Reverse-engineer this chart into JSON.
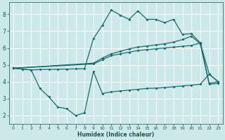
{
  "bg_color": "#cde8e8",
  "grid_color": "#b0d8d8",
  "line_color": "#1a6b6b",
  "xlabel": "Humidex (Indice chaleur)",
  "ylim": [
    1.5,
    8.7
  ],
  "xlim": [
    -0.5,
    23.5
  ],
  "yticks": [
    2,
    3,
    4,
    5,
    6,
    7,
    8
  ],
  "xticks": [
    0,
    1,
    2,
    3,
    4,
    5,
    6,
    7,
    8,
    9,
    10,
    11,
    12,
    13,
    14,
    15,
    16,
    17,
    18,
    19,
    20,
    21,
    22,
    23
  ],
  "series1_x": [
    0,
    1,
    2,
    3,
    4,
    5,
    6,
    7,
    8,
    9,
    10,
    11,
    12,
    13,
    14,
    15,
    16,
    17,
    18,
    19,
    20,
    21,
    22,
    23
  ],
  "series1_y": [
    4.8,
    4.75,
    4.7,
    4.72,
    4.73,
    4.74,
    4.75,
    4.76,
    4.77,
    6.55,
    7.35,
    8.25,
    7.95,
    7.7,
    8.2,
    7.7,
    7.7,
    7.5,
    7.7,
    6.8,
    6.85,
    6.3,
    4.45,
    4.0
  ],
  "series2_x": [
    0,
    9,
    10,
    11,
    12,
    13,
    14,
    15,
    16,
    17,
    18,
    19,
    20,
    21,
    22,
    23
  ],
  "series2_y": [
    4.8,
    5.05,
    5.3,
    5.55,
    5.65,
    5.75,
    5.85,
    5.9,
    5.95,
    6.0,
    6.05,
    6.1,
    6.15,
    6.3,
    3.9,
    4.0
  ],
  "series3_x": [
    0,
    9,
    10,
    11,
    12,
    13,
    14,
    15,
    16,
    17,
    18,
    19,
    20,
    21,
    22,
    23
  ],
  "series3_y": [
    4.8,
    5.1,
    5.4,
    5.65,
    5.8,
    5.95,
    6.05,
    6.12,
    6.18,
    6.25,
    6.35,
    6.5,
    6.7,
    6.25,
    3.85,
    3.9
  ],
  "series4_x": [
    0,
    1,
    2,
    3,
    4,
    5,
    6,
    7,
    8,
    9,
    10,
    11,
    12,
    13,
    14,
    15,
    16,
    17,
    18,
    19,
    20,
    21,
    22,
    23
  ],
  "series4_y": [
    4.8,
    4.75,
    4.7,
    3.6,
    3.1,
    2.5,
    2.4,
    2.0,
    2.15,
    4.6,
    3.3,
    3.4,
    3.45,
    3.5,
    3.55,
    3.6,
    3.62,
    3.65,
    3.7,
    3.75,
    3.8,
    3.85,
    4.45,
    4.0
  ]
}
